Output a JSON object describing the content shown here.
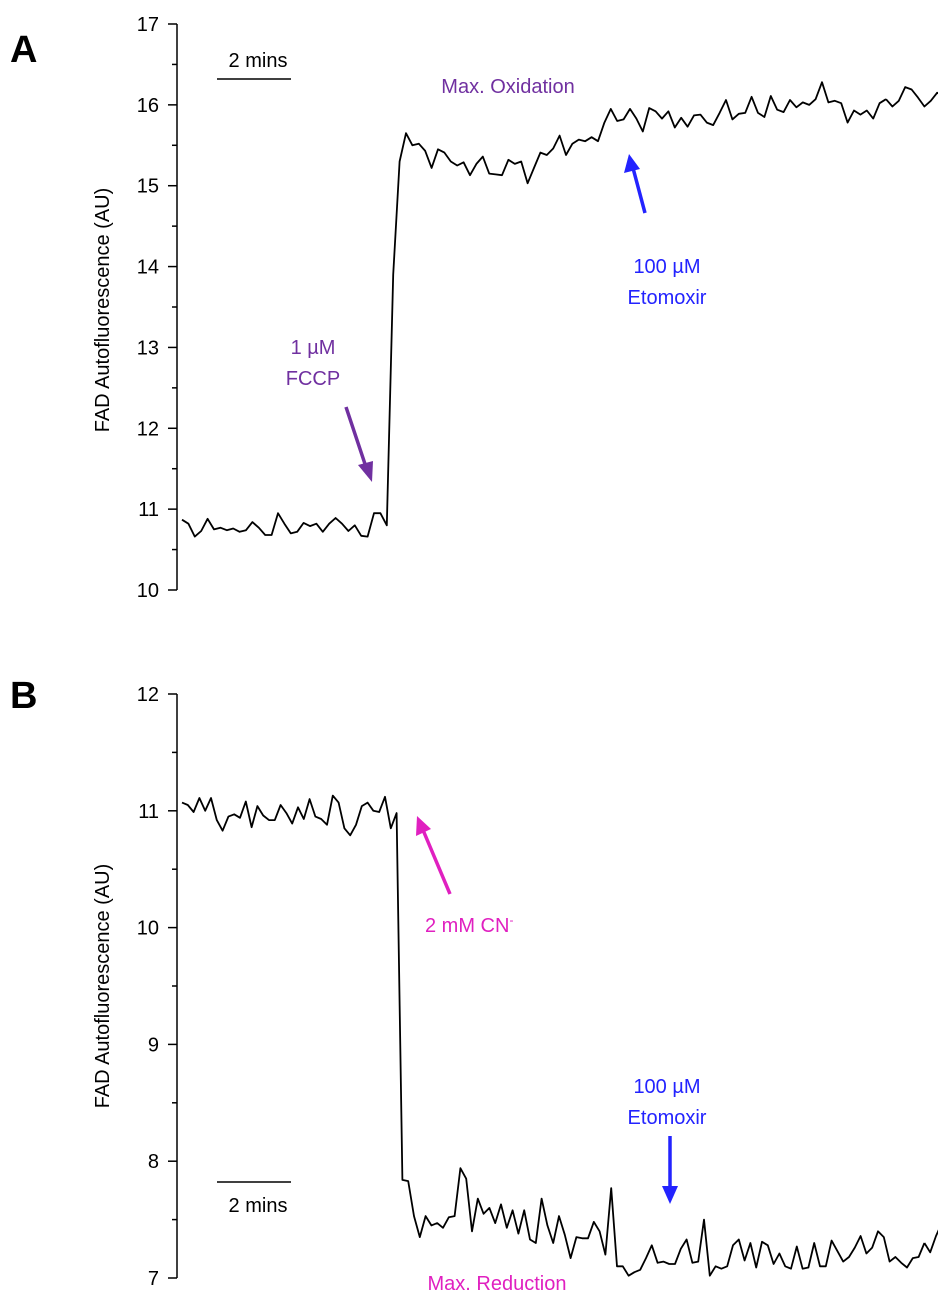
{
  "colors": {
    "trace": "#000000",
    "fccp": "#7030A0",
    "etomoxir": "#2323FF",
    "cyanide": "#E020C0",
    "axis": "#000000"
  },
  "chart_data": [
    {
      "panel": "A",
      "type": "line",
      "ylabel": "FAD Autofluorescence (AU)",
      "ylim": [
        10,
        17
      ],
      "yticks": [
        "10",
        "11",
        "12",
        "13",
        "14",
        "15",
        "16",
        "17"
      ],
      "scalebar_label": "2 mins",
      "annotations": [
        {
          "id": "fccp-dose",
          "text": "1 µM",
          "color": "fccp"
        },
        {
          "id": "fccp-drug",
          "text": "FCCP",
          "color": "fccp"
        },
        {
          "id": "max-oxidation",
          "text": "Max. Oxidation",
          "color": "fccp"
        },
        {
          "id": "etomoxir-dose",
          "text": "100 µM",
          "color": "etomoxir"
        },
        {
          "id": "etomoxir-drug",
          "text": "Etomoxir",
          "color": "etomoxir"
        }
      ],
      "series": [
        {
          "x": [
            0,
            1,
            2,
            3,
            4,
            5,
            6,
            7,
            8,
            9,
            10,
            11,
            12,
            13,
            14,
            15,
            16,
            17,
            18,
            19,
            20,
            21,
            22,
            23,
            24,
            25,
            26,
            27,
            28,
            29,
            30,
            31,
            32,
            33,
            34,
            35,
            36,
            37,
            38,
            39,
            40,
            41,
            42,
            43,
            44,
            45,
            46,
            47,
            48,
            49,
            50,
            51,
            52,
            53,
            54,
            55,
            56,
            57,
            58,
            59,
            60,
            61,
            62,
            63,
            64,
            65,
            66,
            67,
            68,
            69,
            70,
            71,
            72,
            73,
            74,
            75,
            76,
            77,
            78,
            79,
            80,
            81,
            82,
            83,
            84,
            85,
            86,
            87,
            88,
            89,
            90,
            91,
            92,
            93,
            94,
            95,
            96,
            97,
            98,
            99,
            100,
            101,
            102,
            103,
            104,
            105,
            106,
            107,
            108,
            109,
            110
          ],
          "y": [
            10.87,
            10.82,
            10.66,
            10.73,
            10.88,
            10.75,
            10.77,
            10.74,
            10.76,
            10.72,
            10.74,
            10.84,
            10.77,
            10.68,
            10.68,
            10.95,
            10.82,
            10.7,
            10.72,
            10.83,
            10.79,
            10.82,
            10.72,
            10.82,
            10.89,
            10.82,
            10.73,
            10.8,
            10.67,
            10.66,
            10.95,
            10.95,
            10.8,
            13.9,
            15.3,
            15.65,
            15.5,
            15.52,
            15.43,
            15.22,
            15.45,
            15.41,
            15.3,
            15.25,
            15.29,
            15.13,
            15.27,
            15.36,
            15.15,
            15.14,
            15.13,
            15.32,
            15.27,
            15.3,
            15.03,
            15.22,
            15.41,
            15.38,
            15.46,
            15.62,
            15.38,
            15.52,
            15.57,
            15.55,
            15.6,
            15.55,
            15.78,
            15.95,
            15.8,
            15.82,
            15.95,
            15.83,
            15.67,
            15.96,
            15.92,
            15.83,
            15.92,
            15.72,
            15.84,
            15.73,
            15.87,
            15.88,
            15.78,
            15.75,
            15.9,
            16.06,
            15.82,
            15.89,
            15.9,
            16.1,
            15.9,
            15.85,
            16.11,
            15.94,
            15.91,
            16.06,
            15.97,
            16.03,
            16.0,
            16.07,
            16.28,
            16.03,
            16.05,
            16.02,
            15.78,
            15.93,
            15.88,
            15.93,
            15.83,
            16.02,
            16.07
          ]
        },
        {
          "x": [
            110,
            111,
            112,
            113,
            114,
            115,
            116,
            117,
            118,
            119,
            120,
            121,
            122,
            123,
            124,
            125,
            126
          ],
          "y": [
            16.07,
            15.98,
            16.05,
            16.22,
            16.19,
            16.09,
            15.98,
            16.05,
            16.15,
            16.1,
            16.08,
            16.16,
            16.22,
            16.15,
            16.12,
            16.08,
            16.0
          ]
        }
      ]
    },
    {
      "panel": "B",
      "type": "line",
      "ylabel": "FAD Autofluorescence (AU)",
      "ylim": [
        7,
        12
      ],
      "yticks": [
        "7",
        "8",
        "9",
        "10",
        "11",
        "12"
      ],
      "scalebar_label": "2 mins",
      "annotations": [
        {
          "id": "cn-label",
          "text": "2 mM CN",
          "color": "cyanide"
        },
        {
          "id": "cn-superscript",
          "text": "-",
          "color": "cyanide"
        },
        {
          "id": "max-reduction",
          "text": "Max. Reduction",
          "color": "cyanide"
        },
        {
          "id": "etomoxir-dose",
          "text": "100 µM",
          "color": "etomoxir"
        },
        {
          "id": "etomoxir-drug",
          "text": "Etomoxir",
          "color": "etomoxir"
        }
      ],
      "series": [
        {
          "x": [
            0,
            1,
            2,
            3,
            4,
            5,
            6,
            7,
            8,
            9,
            10,
            11,
            12,
            13,
            14,
            15,
            16,
            17,
            18,
            19,
            20,
            21,
            22,
            23,
            24,
            25,
            26,
            27,
            28,
            29,
            30,
            31,
            32,
            33,
            34,
            35,
            36,
            37,
            38,
            39,
            40,
            41,
            42,
            43,
            44,
            45,
            46,
            47,
            48,
            49,
            50,
            51,
            52,
            53,
            54,
            55,
            56,
            57,
            58,
            59,
            60,
            61,
            62,
            63,
            64,
            65,
            66,
            67,
            68,
            69,
            70,
            71,
            72,
            73,
            74,
            75,
            76,
            77,
            78,
            79,
            80,
            81,
            82,
            83,
            84,
            85,
            86,
            87,
            88,
            89,
            90,
            91,
            92,
            93,
            94,
            95,
            96,
            97,
            98,
            99,
            100,
            101,
            102,
            103,
            104,
            105,
            106,
            107,
            108,
            109,
            110,
            111,
            112,
            113,
            114,
            115,
            116,
            117,
            118,
            119,
            120,
            121,
            122,
            123,
            124,
            125,
            126,
            127,
            128
          ],
          "y": [
            11.07,
            11.05,
            10.99,
            11.11,
            11.0,
            11.11,
            10.92,
            10.83,
            10.95,
            10.97,
            10.94,
            11.08,
            10.86,
            11.04,
            10.96,
            10.92,
            10.92,
            11.05,
            10.98,
            10.89,
            11.03,
            10.93,
            11.1,
            10.95,
            10.93,
            10.88,
            11.13,
            11.07,
            10.85,
            10.79,
            10.88,
            11.04,
            11.07,
            11.0,
            10.99,
            11.12,
            10.85,
            10.98,
            7.84,
            7.83,
            7.53,
            7.35,
            7.53,
            7.45,
            7.47,
            7.43,
            7.52,
            7.53,
            7.94,
            7.85,
            7.4,
            7.68,
            7.55,
            7.6,
            7.47,
            7.63,
            7.43,
            7.58,
            7.38,
            7.58,
            7.33,
            7.3,
            7.68,
            7.45,
            7.3,
            7.53,
            7.37,
            7.17,
            7.35,
            7.34,
            7.34,
            7.48,
            7.4,
            7.2,
            7.77,
            7.1,
            7.1,
            7.02,
            7.05,
            7.07,
            7.17,
            7.28,
            7.13,
            7.14,
            7.12,
            7.12,
            7.25,
            7.33,
            7.13,
            7.14,
            7.5,
            7.02,
            7.1,
            7.08,
            7.1,
            7.28,
            7.33,
            7.15,
            7.3,
            7.09,
            7.31,
            7.28,
            7.12,
            7.21,
            7.1,
            7.08,
            7.27,
            7.08,
            7.09,
            7.3,
            7.1,
            7.1,
            7.32,
            7.23,
            7.14,
            7.18,
            7.26,
            7.36,
            7.21,
            7.26,
            7.4,
            7.35,
            7.14,
            7.18,
            7.13,
            7.09,
            7.17,
            7.18,
            7.3
          ]
        },
        {
          "x": [
            128,
            129,
            130,
            131,
            132,
            133,
            134,
            135,
            136
          ],
          "y": [
            7.3,
            7.22,
            7.36,
            7.47,
            7.58,
            7.48,
            7.44,
            7.38,
            7.5
          ]
        }
      ]
    }
  ]
}
